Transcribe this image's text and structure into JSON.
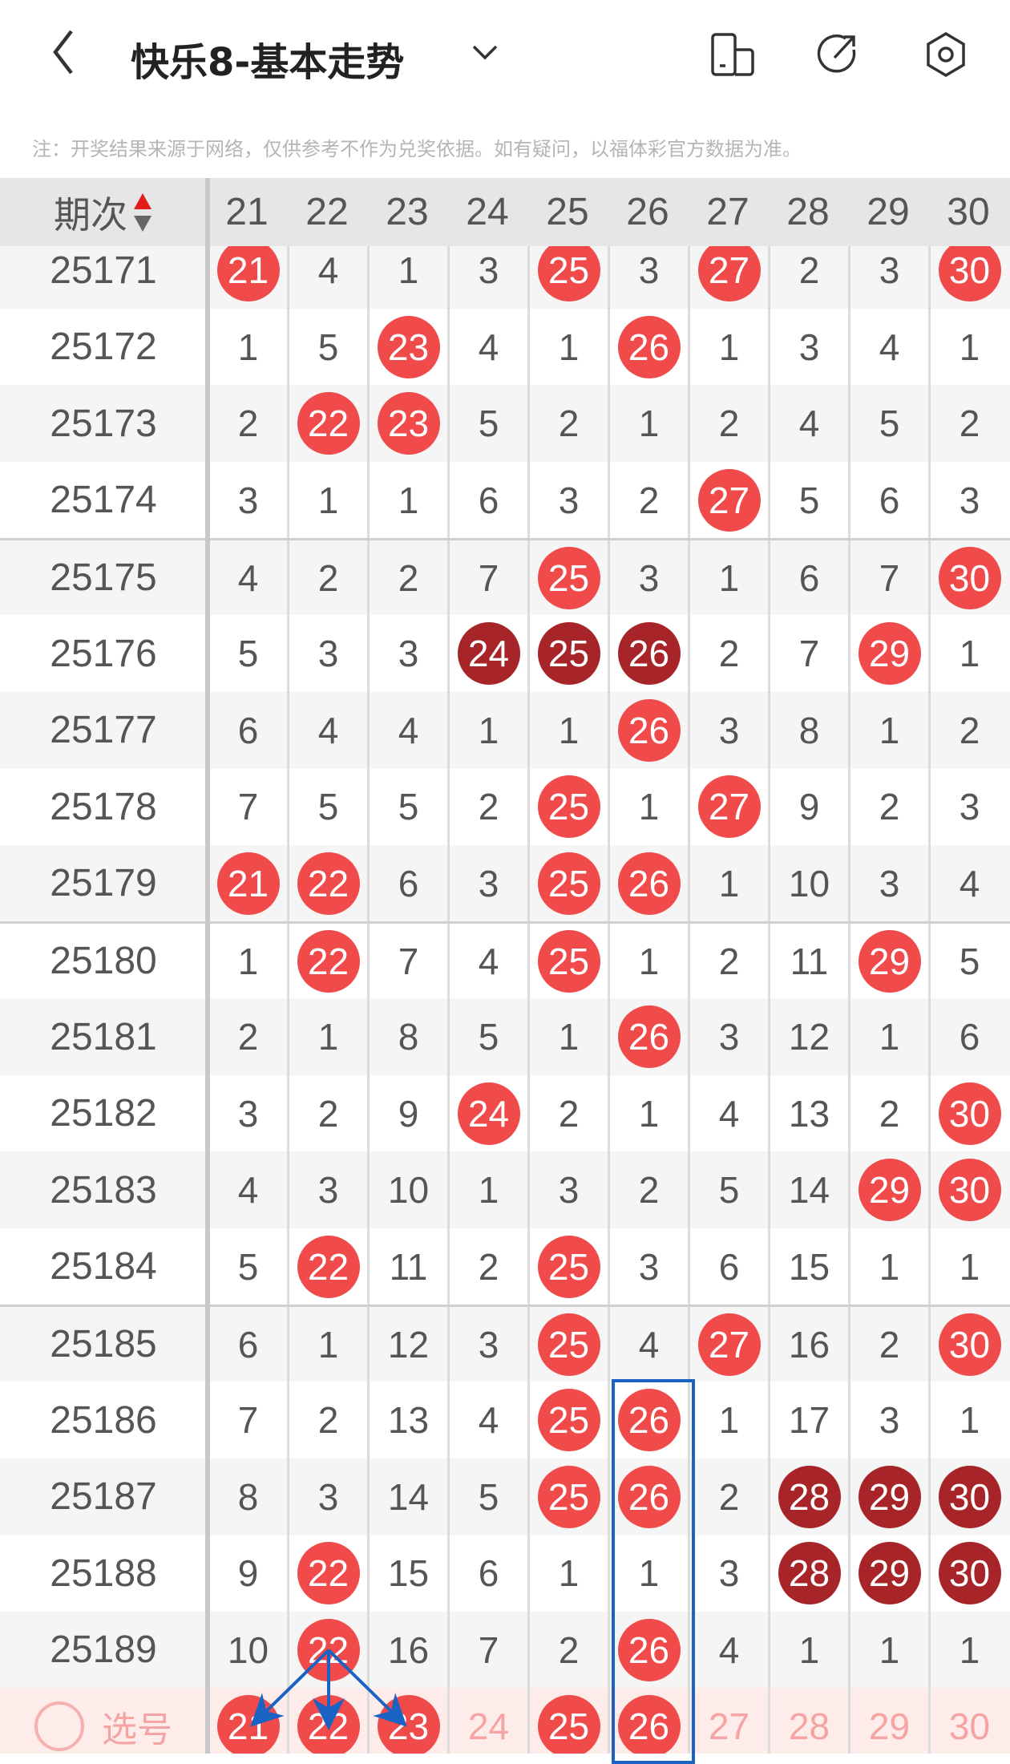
{
  "app": {
    "title": "快乐8-基本走势",
    "note": "注：开奖结果来源于网络，仅供参考不作为兑奖依据。如有疑问，以福体彩官方数据为准。"
  },
  "icons": {
    "back": "chevron-left-icon",
    "dropdown": "chevron-down-icon",
    "device": "device-layout-icon",
    "share": "share-icon",
    "settings": "settings-icon"
  },
  "colors": {
    "hit": "#f04a4a",
    "consecutive": "#a72428",
    "highlight_box": "#1a62c4"
  },
  "table": {
    "period_header": "期次",
    "columns": [
      "21",
      "22",
      "23",
      "24",
      "25",
      "26",
      "27",
      "28",
      "29",
      "30"
    ],
    "rows": [
      {
        "period": "25171",
        "values": [
          "21",
          "4",
          "1",
          "3",
          "25",
          "3",
          "27",
          "2",
          "3",
          "30"
        ],
        "marks": [
          "h",
          "",
          "",
          "",
          "h",
          "",
          "h",
          "",
          "",
          "h"
        ]
      },
      {
        "period": "25172",
        "values": [
          "1",
          "5",
          "23",
          "4",
          "1",
          "26",
          "1",
          "3",
          "4",
          "1"
        ],
        "marks": [
          "",
          "",
          "h",
          "",
          "",
          "h",
          "",
          "",
          "",
          ""
        ]
      },
      {
        "period": "25173",
        "values": [
          "2",
          "22",
          "23",
          "5",
          "2",
          "1",
          "2",
          "4",
          "5",
          "2"
        ],
        "marks": [
          "",
          "h",
          "h",
          "",
          "",
          "",
          "",
          "",
          "",
          ""
        ]
      },
      {
        "period": "25174",
        "values": [
          "3",
          "1",
          "1",
          "6",
          "3",
          "2",
          "27",
          "5",
          "6",
          "3"
        ],
        "marks": [
          "",
          "",
          "",
          "",
          "",
          "",
          "h",
          "",
          "",
          ""
        ]
      },
      {
        "period": "25175",
        "values": [
          "4",
          "2",
          "2",
          "7",
          "25",
          "3",
          "1",
          "6",
          "7",
          "30"
        ],
        "marks": [
          "",
          "",
          "",
          "",
          "h",
          "",
          "",
          "",
          "",
          "h"
        ]
      },
      {
        "period": "25176",
        "values": [
          "5",
          "3",
          "3",
          "24",
          "25",
          "26",
          "2",
          "7",
          "29",
          "1"
        ],
        "marks": [
          "",
          "",
          "",
          "d",
          "d",
          "d",
          "",
          "",
          "h",
          ""
        ]
      },
      {
        "period": "25177",
        "values": [
          "6",
          "4",
          "4",
          "1",
          "1",
          "26",
          "3",
          "8",
          "1",
          "2"
        ],
        "marks": [
          "",
          "",
          "",
          "",
          "",
          "h",
          "",
          "",
          "",
          ""
        ]
      },
      {
        "period": "25178",
        "values": [
          "7",
          "5",
          "5",
          "2",
          "25",
          "1",
          "27",
          "9",
          "2",
          "3"
        ],
        "marks": [
          "",
          "",
          "",
          "",
          "h",
          "",
          "h",
          "",
          "",
          ""
        ]
      },
      {
        "period": "25179",
        "values": [
          "21",
          "22",
          "6",
          "3",
          "25",
          "26",
          "1",
          "10",
          "3",
          "4"
        ],
        "marks": [
          "h",
          "h",
          "",
          "",
          "h",
          "h",
          "",
          "",
          "",
          ""
        ]
      },
      {
        "period": "25180",
        "values": [
          "1",
          "22",
          "7",
          "4",
          "25",
          "1",
          "2",
          "11",
          "29",
          "5"
        ],
        "marks": [
          "",
          "h",
          "",
          "",
          "h",
          "",
          "",
          "",
          "h",
          ""
        ]
      },
      {
        "period": "25181",
        "values": [
          "2",
          "1",
          "8",
          "5",
          "1",
          "26",
          "3",
          "12",
          "1",
          "6"
        ],
        "marks": [
          "",
          "",
          "",
          "",
          "",
          "h",
          "",
          "",
          "",
          ""
        ]
      },
      {
        "period": "25182",
        "values": [
          "3",
          "2",
          "9",
          "24",
          "2",
          "1",
          "4",
          "13",
          "2",
          "30"
        ],
        "marks": [
          "",
          "",
          "",
          "h",
          "",
          "",
          "",
          "",
          "",
          "h"
        ]
      },
      {
        "period": "25183",
        "values": [
          "4",
          "3",
          "10",
          "1",
          "3",
          "2",
          "5",
          "14",
          "29",
          "30"
        ],
        "marks": [
          "",
          "",
          "",
          "",
          "",
          "",
          "",
          "",
          "h",
          "h"
        ]
      },
      {
        "period": "25184",
        "values": [
          "5",
          "22",
          "11",
          "2",
          "25",
          "3",
          "6",
          "15",
          "1",
          "1"
        ],
        "marks": [
          "",
          "h",
          "",
          "",
          "h",
          "",
          "",
          "",
          "",
          ""
        ]
      },
      {
        "period": "25185",
        "values": [
          "6",
          "1",
          "12",
          "3",
          "25",
          "4",
          "27",
          "16",
          "2",
          "30"
        ],
        "marks": [
          "",
          "",
          "",
          "",
          "h",
          "",
          "h",
          "",
          "",
          "h"
        ]
      },
      {
        "period": "25186",
        "values": [
          "7",
          "2",
          "13",
          "4",
          "25",
          "26",
          "1",
          "17",
          "3",
          "1"
        ],
        "marks": [
          "",
          "",
          "",
          "",
          "h",
          "h",
          "",
          "",
          "",
          ""
        ]
      },
      {
        "period": "25187",
        "values": [
          "8",
          "3",
          "14",
          "5",
          "25",
          "26",
          "2",
          "28",
          "29",
          "30"
        ],
        "marks": [
          "",
          "",
          "",
          "",
          "h",
          "h",
          "",
          "d",
          "d",
          "d"
        ]
      },
      {
        "period": "25188",
        "values": [
          "9",
          "22",
          "15",
          "6",
          "1",
          "1",
          "3",
          "28",
          "29",
          "30"
        ],
        "marks": [
          "",
          "h",
          "",
          "",
          "",
          "",
          "",
          "d",
          "d",
          "d"
        ]
      },
      {
        "period": "25189",
        "values": [
          "10",
          "22",
          "16",
          "7",
          "2",
          "26",
          "4",
          "1",
          "1",
          "1"
        ],
        "marks": [
          "",
          "h",
          "",
          "",
          "",
          "h",
          "",
          "",
          "",
          ""
        ]
      }
    ],
    "selection": {
      "label": "选号",
      "values": [
        "21",
        "22",
        "23",
        "24",
        "25",
        "26",
        "27",
        "28",
        "29",
        "30"
      ],
      "selected": [
        true,
        true,
        true,
        false,
        true,
        true,
        false,
        false,
        false,
        false
      ]
    }
  }
}
